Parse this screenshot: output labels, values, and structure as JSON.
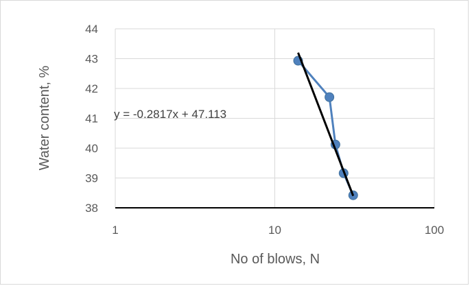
{
  "chart_data": {
    "type": "scatter",
    "title": "",
    "xlabel": "No of blows, N",
    "ylabel": "Water content, %",
    "x_scale": "log",
    "xlim": [
      1,
      100
    ],
    "ylim": [
      38,
      44
    ],
    "x_ticks": [
      "1",
      "10",
      "100"
    ],
    "y_ticks": [
      "38",
      "39",
      "40",
      "41",
      "42",
      "43",
      "44"
    ],
    "grid": true,
    "legend": "none",
    "series": [
      {
        "x": [
          14,
          22,
          24,
          27,
          31
        ],
        "y": [
          42.93,
          41.71,
          40.12,
          39.16,
          38.42
        ],
        "color": "#4f81bd",
        "style": "line-with-markers"
      }
    ],
    "trendline": {
      "color": "#000000",
      "slope": -0.2817,
      "intercept": 47.113,
      "x_range": [
        14,
        31
      ],
      "y_range": [
        43.2,
        38.4
      ],
      "equation_label": "y = -0.2817x + 47.113"
    }
  }
}
